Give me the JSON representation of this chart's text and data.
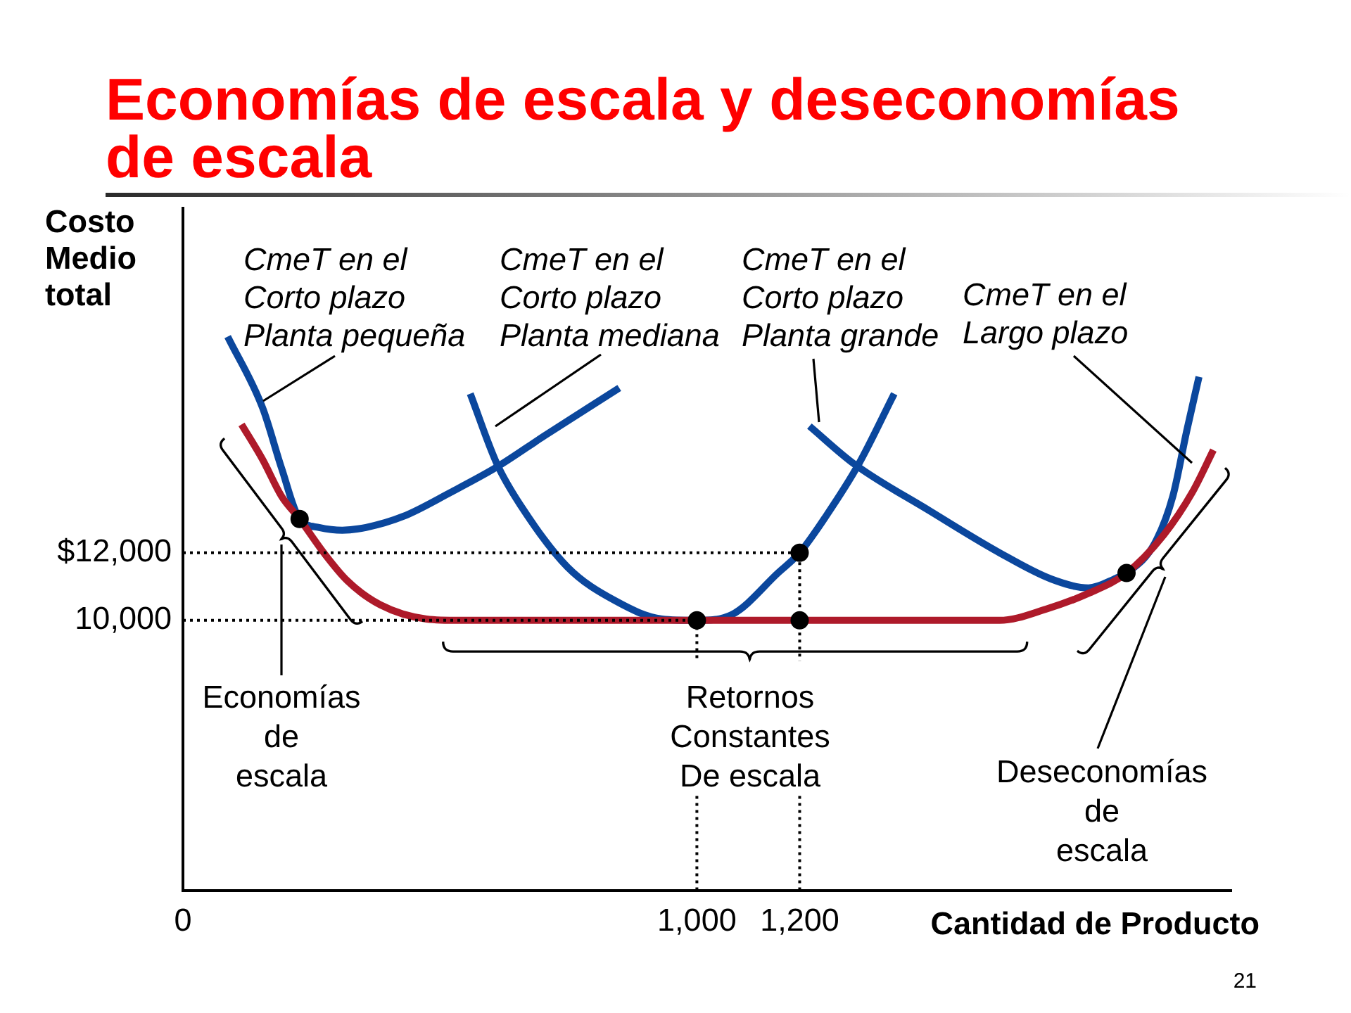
{
  "chart_data": {
    "type": "line",
    "title": "Economías de escala y deseconomías de escala",
    "xlabel": "Cantidad de Producto",
    "ylabel": "Costo\nMedio\ntotal",
    "xlim": [
      0,
      2040
    ],
    "xticks": [
      0,
      {
        "value": 1000,
        "label": "1,000"
      },
      {
        "value": 1200,
        "label": "1,200"
      }
    ],
    "ylim": [
      2000,
      22200
    ],
    "yticks": [
      {
        "value": 10000,
        "label": "10,000"
      },
      {
        "value": 12000,
        "label": "$12,000"
      }
    ],
    "grid": false,
    "legend": false,
    "marker": "none",
    "line_style": "solid",
    "series": [
      {
        "name": "CmeT en el\nCorto plazo\nPlanta pequeña",
        "color": "#0b479d",
        "x": [
          87,
          155,
          192,
          227,
          265,
          310,
          356,
          429,
          521,
          611,
          703,
          849
        ],
        "values": [
          18400,
          16290,
          14500,
          13000,
          12750,
          12670,
          12750,
          13080,
          13790,
          14540,
          15460,
          16880
        ]
      },
      {
        "name": "CmeT en el\nCorto plazo\nPlanta mediana",
        "color": "#0b479d",
        "x": [
          559,
          611,
          658,
          748,
          841,
          932,
          1000,
          1068,
          1159,
          1200,
          1251,
          1315,
          1384
        ],
        "values": [
          16710,
          14630,
          13380,
          11580,
          10580,
          10040,
          10000,
          10170,
          11420,
          12000,
          13080,
          14630,
          16710
        ]
      },
      {
        "name": "CmeT en el\nCorto plazo\nPlanta grande",
        "color": "#0b479d",
        "x": [
          1219,
          1306,
          1452,
          1589,
          1690,
          1762,
          1816,
          1836,
          1890,
          1926,
          1953,
          1977
        ],
        "values": [
          15750,
          14630,
          13250,
          12000,
          11220,
          10960,
          11250,
          11400,
          12260,
          13670,
          15600,
          17210
        ]
      },
      {
        "name": "CmeT en el\nLargo plazo",
        "color": "#ae1a2a",
        "x": [
          114,
          155,
          192,
          227,
          274,
          320,
          384,
          474,
          539,
          1000,
          1200,
          1589,
          1679,
          1762,
          1836,
          1909,
          1964,
          2005
        ],
        "values": [
          15800,
          14760,
          13670,
          13000,
          12000,
          11170,
          10460,
          10040,
          10000,
          10000,
          10000,
          10000,
          10330,
          10800,
          11400,
          12540,
          13790,
          15040
        ]
      },
      {
        "color": "#000000",
        "line_style": "dotted",
        "x": [
          0,
          1000,
          1000
        ],
        "values": [
          10000,
          10000,
          8800
        ]
      },
      {
        "color": "#000000",
        "line_style": "dotted",
        "x": [
          1000,
          1000
        ],
        "values": [
          4800,
          2000
        ]
      },
      {
        "color": "#000000",
        "line_style": "dotted",
        "x": [
          0,
          1200,
          1200
        ],
        "values": [
          12000,
          12000,
          8800
        ]
      },
      {
        "color": "#000000",
        "line_style": "dotted",
        "x": [
          1200,
          1200
        ],
        "values": [
          4800,
          2000
        ]
      },
      {
        "type": "scatter",
        "color": "#000000",
        "marker": "circle",
        "x": [
          227,
          1000,
          1200,
          1200,
          1836
        ],
        "values": [
          13000,
          10000,
          12000,
          10000,
          11400
        ]
      }
    ],
    "annotations": [
      "Economías\nde\nescala",
      "Retornos\nConstantes\nDe escala",
      "Deseconomías\nde\nescala",
      "21"
    ]
  }
}
